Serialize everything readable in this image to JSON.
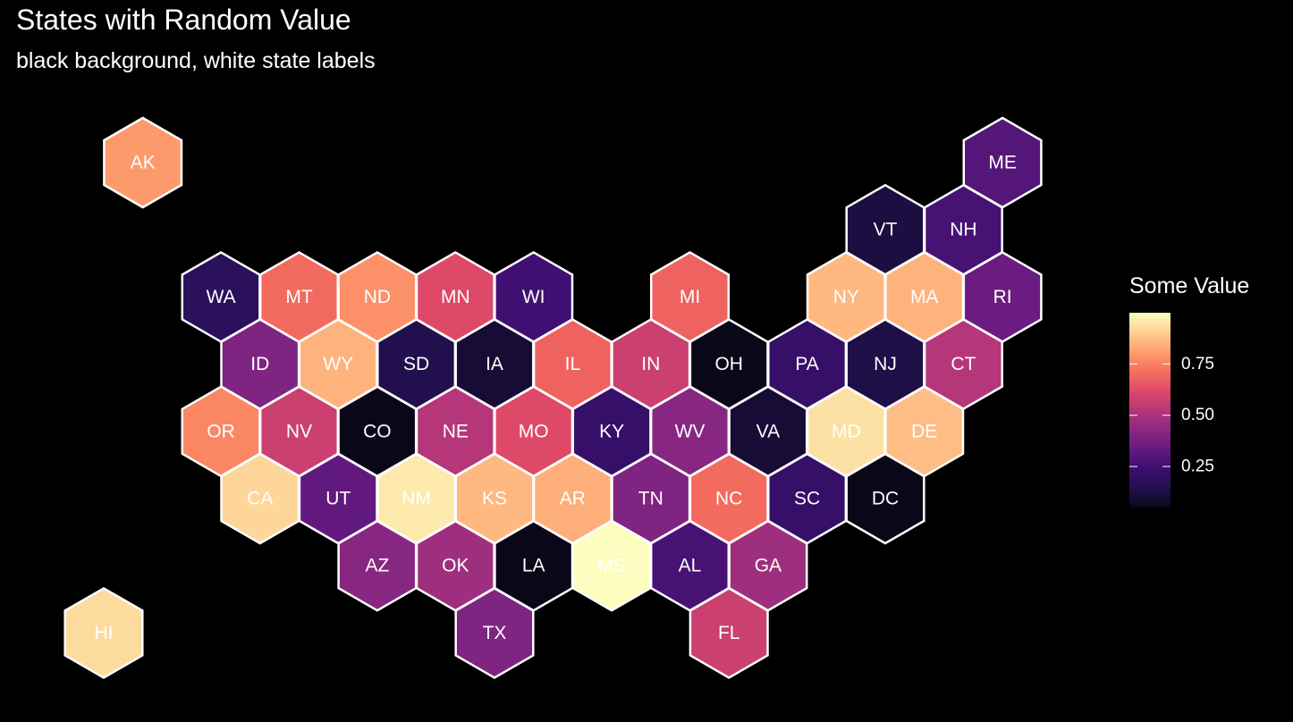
{
  "title": "States with Random Value",
  "subtitle": "black background, white state labels",
  "legend": {
    "title": "Some Value",
    "placement": "right",
    "colormap": "magma",
    "stops": [
      "#0a0718",
      "#221150",
      "#3b0f70",
      "#641a80",
      "#8c2981",
      "#b73779",
      "#de4968",
      "#f7705c",
      "#fe9f6d",
      "#fecf92",
      "#fcfdbf"
    ],
    "range": [
      0.05,
      1.0
    ],
    "ticks": [
      0.25,
      0.5,
      0.75
    ],
    "tick_labels": [
      "0.25",
      "0.50",
      "0.75"
    ]
  },
  "map_data": {
    "type": "hex-tile-map",
    "states": [
      {
        "abbr": "AK",
        "col": 0.5,
        "row": 0,
        "value": 0.8
      },
      {
        "abbr": "ME",
        "col": 11.5,
        "row": 0,
        "value": 0.3
      },
      {
        "abbr": "VT",
        "col": 10,
        "row": 1,
        "value": 0.12
      },
      {
        "abbr": "NH",
        "col": 11,
        "row": 1,
        "value": 0.27
      },
      {
        "abbr": "WA",
        "col": 1.5,
        "row": 2,
        "value": 0.18
      },
      {
        "abbr": "MT",
        "col": 2.5,
        "row": 2,
        "value": 0.7
      },
      {
        "abbr": "ND",
        "col": 3.5,
        "row": 2,
        "value": 0.78
      },
      {
        "abbr": "MN",
        "col": 4.5,
        "row": 2,
        "value": 0.62
      },
      {
        "abbr": "WI",
        "col": 5.5,
        "row": 2,
        "value": 0.25
      },
      {
        "abbr": "MI",
        "col": 7.5,
        "row": 2,
        "value": 0.68
      },
      {
        "abbr": "NY",
        "col": 9.5,
        "row": 2,
        "value": 0.86
      },
      {
        "abbr": "MA",
        "col": 10.5,
        "row": 2,
        "value": 0.85
      },
      {
        "abbr": "RI",
        "col": 11.5,
        "row": 2,
        "value": 0.35
      },
      {
        "abbr": "ID",
        "col": 2,
        "row": 3,
        "value": 0.4
      },
      {
        "abbr": "WY",
        "col": 3,
        "row": 3,
        "value": 0.85
      },
      {
        "abbr": "SD",
        "col": 4,
        "row": 3,
        "value": 0.14
      },
      {
        "abbr": "IA",
        "col": 5,
        "row": 3,
        "value": 0.1
      },
      {
        "abbr": "IL",
        "col": 6,
        "row": 3,
        "value": 0.68
      },
      {
        "abbr": "IN",
        "col": 7,
        "row": 3,
        "value": 0.57
      },
      {
        "abbr": "OH",
        "col": 8,
        "row": 3,
        "value": 0.04
      },
      {
        "abbr": "PA",
        "col": 9,
        "row": 3,
        "value": 0.22
      },
      {
        "abbr": "NJ",
        "col": 10,
        "row": 3,
        "value": 0.13
      },
      {
        "abbr": "CT",
        "col": 11,
        "row": 3,
        "value": 0.52
      },
      {
        "abbr": "OR",
        "col": 1.5,
        "row": 4,
        "value": 0.76
      },
      {
        "abbr": "NV",
        "col": 2.5,
        "row": 4,
        "value": 0.57
      },
      {
        "abbr": "CO",
        "col": 3.5,
        "row": 4,
        "value": 0.05
      },
      {
        "abbr": "NE",
        "col": 4.5,
        "row": 4,
        "value": 0.52
      },
      {
        "abbr": "MO",
        "col": 5.5,
        "row": 4,
        "value": 0.62
      },
      {
        "abbr": "KY",
        "col": 6.5,
        "row": 4,
        "value": 0.22
      },
      {
        "abbr": "WV",
        "col": 7.5,
        "row": 4,
        "value": 0.42
      },
      {
        "abbr": "VA",
        "col": 8.5,
        "row": 4,
        "value": 0.1
      },
      {
        "abbr": "MD",
        "col": 9.5,
        "row": 4,
        "value": 0.94
      },
      {
        "abbr": "DE",
        "col": 10.5,
        "row": 4,
        "value": 0.87
      },
      {
        "abbr": "CA",
        "col": 2,
        "row": 5,
        "value": 0.92
      },
      {
        "abbr": "UT",
        "col": 3,
        "row": 5,
        "value": 0.33
      },
      {
        "abbr": "NM",
        "col": 4,
        "row": 5,
        "value": 0.96
      },
      {
        "abbr": "KS",
        "col": 5,
        "row": 5,
        "value": 0.86
      },
      {
        "abbr": "AR",
        "col": 6,
        "row": 5,
        "value": 0.84
      },
      {
        "abbr": "TN",
        "col": 7,
        "row": 5,
        "value": 0.4
      },
      {
        "abbr": "NC",
        "col": 8,
        "row": 5,
        "value": 0.7
      },
      {
        "abbr": "SC",
        "col": 9,
        "row": 5,
        "value": 0.22
      },
      {
        "abbr": "DC",
        "col": 10,
        "row": 5,
        "value": 0.05
      },
      {
        "abbr": "AZ",
        "col": 3.5,
        "row": 6,
        "value": 0.42
      },
      {
        "abbr": "OK",
        "col": 4.5,
        "row": 6,
        "value": 0.47
      },
      {
        "abbr": "LA",
        "col": 5.5,
        "row": 6,
        "value": 0.04
      },
      {
        "abbr": "MS",
        "col": 6.5,
        "row": 6,
        "value": 1.0
      },
      {
        "abbr": "AL",
        "col": 7.5,
        "row": 6,
        "value": 0.27
      },
      {
        "abbr": "GA",
        "col": 8.5,
        "row": 6,
        "value": 0.47
      },
      {
        "abbr": "HI",
        "col": 0,
        "row": 7,
        "value": 0.93
      },
      {
        "abbr": "TX",
        "col": 5,
        "row": 7,
        "value": 0.4
      },
      {
        "abbr": "FL",
        "col": 8,
        "row": 7,
        "value": 0.57
      }
    ]
  }
}
